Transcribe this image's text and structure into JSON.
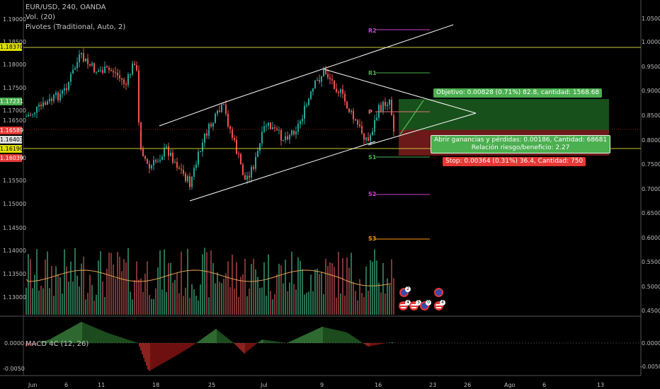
{
  "legend": {
    "symbol": "EUR/USD, 240, OANDA",
    "volume": "Vol. (20)",
    "pivots": "Pivotes (Traditional, Auto, 2)"
  },
  "macd_label": "MACD 4C (12, 26)",
  "pivot_labels": {
    "r2": "R2",
    "r1": "R1",
    "p": "P",
    "s1": "S1",
    "s2": "S2",
    "s3": "S3"
  },
  "left_axis": [
    "1.19000",
    "1.18500",
    "1.18000",
    "1.17500",
    "1.17000",
    "1.16500",
    "1.16000",
    "1.15500",
    "1.15000",
    "1.14500",
    "1.14000",
    "1.13500",
    "1.13000"
  ],
  "price_tags": [
    {
      "text": "1.18370",
      "bg": "#dede00",
      "fg": "#000000"
    },
    {
      "text": "1.17231",
      "bg": "#4caf50",
      "fg": "#ffffff"
    },
    {
      "text": "1.16589",
      "bg": "#e53935",
      "fg": "#ffffff"
    },
    {
      "text": "1.16403",
      "bg": "#e0e0e0",
      "fg": "#000000"
    },
    {
      "text": "1.16190",
      "bg": "#dede00",
      "fg": "#000000"
    },
    {
      "text": "1.16039",
      "bg": "#e53935",
      "fg": "#ffffff"
    }
  ],
  "right_axis": [
    "1.0500",
    "1.0000",
    "0.9500",
    "0.9000",
    "0.8500",
    "0.8000",
    "0.7500",
    "0.7000",
    "0.6500",
    "0.6000",
    "0.5500",
    "0.5000",
    "0.4500"
  ],
  "macd_axis": [
    "0.0000",
    "-0.0050",
    "0.0000",
    "-0.0050"
  ],
  "time_axis": [
    "Jun",
    "6",
    "11",
    "18",
    "25",
    "Jul",
    "9",
    "16",
    "23",
    "26",
    "Ago",
    "6",
    "13"
  ],
  "position": {
    "target": "Objetivo: 0.00828 (0.71%) 82.8, cantidad: 1568.68",
    "open_pl": "Abrir ganancias y pérdidas: 0.00186, Cantidad: 68681",
    "ratio": "Relación riesgo/beneficio: 2.27",
    "stop": "Stop: 0.00364 (0.31%) 36.4, Cantidad: 750"
  },
  "event_badges": [
    "2",
    "4",
    "5",
    "0",
    "4"
  ],
  "colors": {
    "up": "#26a69a",
    "down": "#ef5350",
    "macd_up": "#4caf50",
    "macd_down": "#e53935",
    "horizontal_line": "#c8c83a",
    "r2": "#d040d0",
    "r1": "#4caf50",
    "pivot": "#e57373",
    "s1": "#4caf50",
    "s2": "#d040d0",
    "s3": "#ff9800"
  }
}
